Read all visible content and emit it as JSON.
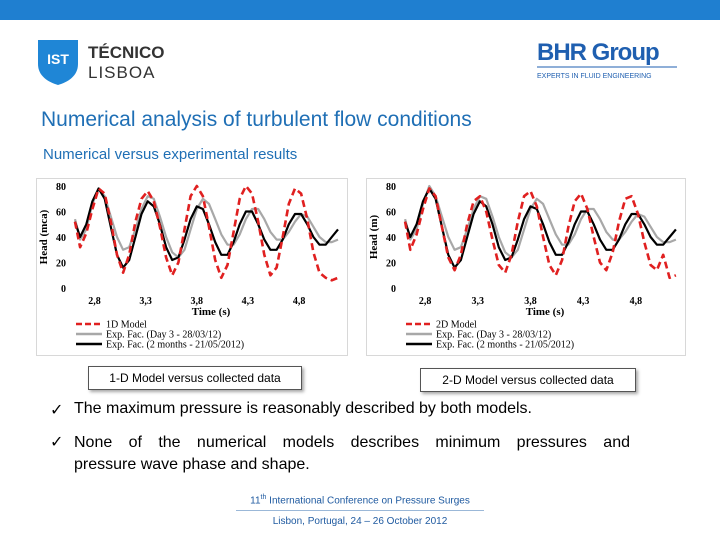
{
  "header": {
    "ist_logo": {
      "line1": "TÉCNICO",
      "line2": "LISBOA",
      "mark": "IST"
    },
    "bhr_logo": {
      "name": "BHR Group",
      "tagline": "EXPERTS IN FLUID ENGINEERING"
    }
  },
  "title": "Numerical analysis of turbulent flow conditions",
  "subtitle": "Numerical versus experimental results",
  "colors": {
    "accent": "#1f7fd0",
    "title": "#1f6fb5",
    "model": "#e02020",
    "exp_day3": "#a8a8a8",
    "exp_2months": "#000000"
  },
  "chart_data": [
    {
      "type": "line",
      "xlabel": "Time (s)",
      "ylabel": "Head (mca)",
      "xlim": [
        2.6,
        5.2
      ],
      "ylim": [
        0,
        80
      ],
      "xticks": [
        "2,8",
        "3,3",
        "3,8",
        "4,3",
        "4,8"
      ],
      "yticks": [
        "0",
        "20",
        "40",
        "60",
        "80"
      ],
      "legend_position": "bottom-left",
      "series": [
        {
          "name": "1D Model",
          "style": "dashed",
          "color": "#e02020",
          "x": [
            2.61,
            2.66,
            2.72,
            2.78,
            2.84,
            2.9,
            2.96,
            3.02,
            3.08,
            3.14,
            3.2,
            3.26,
            3.32,
            3.38,
            3.44,
            3.5,
            3.56,
            3.62,
            3.68,
            3.74,
            3.8,
            3.86,
            3.92,
            3.98,
            4.04,
            4.1,
            4.16,
            4.22,
            4.28,
            4.34,
            4.4,
            4.46,
            4.52,
            4.58,
            4.64,
            4.7,
            4.76,
            4.82,
            4.88,
            4.94,
            5.0,
            5.06,
            5.12,
            5.18
          ],
          "y": [
            52,
            32,
            43,
            62,
            78,
            74,
            52,
            26,
            12,
            26,
            52,
            70,
            76,
            68,
            48,
            24,
            10,
            20,
            46,
            72,
            80,
            72,
            48,
            22,
            8,
            18,
            44,
            70,
            80,
            74,
            52,
            26,
            10,
            16,
            40,
            66,
            78,
            74,
            54,
            28,
            12,
            8,
            6,
            8
          ]
        },
        {
          "name": "Exp. Fac. (Day 3 - 28/03/12)",
          "style": "solid",
          "color": "#a8a8a8",
          "x": [
            2.61,
            2.66,
            2.72,
            2.78,
            2.84,
            2.9,
            2.96,
            3.02,
            3.08,
            3.14,
            3.2,
            3.26,
            3.32,
            3.38,
            3.44,
            3.5,
            3.56,
            3.62,
            3.68,
            3.74,
            3.8,
            3.86,
            3.92,
            3.98,
            4.04,
            4.1,
            4.16,
            4.22,
            4.28,
            4.34,
            4.4,
            4.46,
            4.52,
            4.58,
            4.64,
            4.7,
            4.76,
            4.82,
            4.88,
            4.94,
            5.0,
            5.06,
            5.12,
            5.18
          ],
          "y": [
            54,
            38,
            46,
            66,
            78,
            72,
            56,
            40,
            30,
            32,
            46,
            62,
            72,
            70,
            56,
            40,
            28,
            24,
            30,
            46,
            62,
            70,
            66,
            54,
            42,
            34,
            34,
            42,
            54,
            62,
            62,
            54,
            44,
            38,
            38,
            44,
            52,
            58,
            56,
            48,
            40,
            36,
            36,
            38
          ]
        },
        {
          "name": "Exp. Fac. (2 months - 21/05/2012)",
          "style": "solid",
          "color": "#000000",
          "x": [
            2.61,
            2.66,
            2.72,
            2.78,
            2.84,
            2.9,
            2.96,
            3.02,
            3.08,
            3.14,
            3.2,
            3.26,
            3.32,
            3.38,
            3.44,
            3.5,
            3.56,
            3.62,
            3.68,
            3.74,
            3.8,
            3.86,
            3.92,
            3.98,
            4.04,
            4.1,
            4.16,
            4.22,
            4.28,
            4.34,
            4.4,
            4.46,
            4.52,
            4.58,
            4.64,
            4.7,
            4.76,
            4.82,
            4.88,
            4.94,
            5.0,
            5.06,
            5.12,
            5.18
          ],
          "y": [
            52,
            40,
            50,
            68,
            78,
            70,
            48,
            26,
            16,
            22,
            40,
            58,
            68,
            64,
            50,
            32,
            22,
            24,
            38,
            54,
            64,
            62,
            50,
            36,
            26,
            26,
            36,
            50,
            60,
            60,
            50,
            38,
            30,
            30,
            38,
            50,
            58,
            58,
            50,
            40,
            34,
            34,
            40,
            46
          ]
        }
      ]
    },
    {
      "type": "line",
      "xlabel": "Time (s)",
      "ylabel": "Head (m)",
      "xlim": [
        2.6,
        5.2
      ],
      "ylim": [
        0,
        80
      ],
      "xticks": [
        "2,8",
        "3,3",
        "3,8",
        "4,3",
        "4,8"
      ],
      "yticks": [
        "0",
        "20",
        "40",
        "60",
        "80"
      ],
      "legend_position": "bottom-left",
      "series": [
        {
          "name": "2D Model",
          "style": "dashed",
          "color": "#e02020",
          "x": [
            2.61,
            2.66,
            2.72,
            2.78,
            2.84,
            2.9,
            2.96,
            3.02,
            3.08,
            3.14,
            3.2,
            3.26,
            3.32,
            3.38,
            3.44,
            3.5,
            3.56,
            3.62,
            3.68,
            3.74,
            3.8,
            3.86,
            3.92,
            3.98,
            4.04,
            4.1,
            4.16,
            4.22,
            4.28,
            4.34,
            4.4,
            4.46,
            4.52,
            4.58,
            4.64,
            4.7,
            4.76,
            4.82,
            4.88,
            4.94,
            5.0,
            5.06,
            5.12,
            5.18
          ],
          "y": [
            52,
            30,
            42,
            62,
            78,
            72,
            48,
            24,
            14,
            26,
            50,
            68,
            72,
            60,
            38,
            18,
            12,
            26,
            52,
            72,
            76,
            64,
            40,
            18,
            10,
            22,
            48,
            68,
            74,
            62,
            40,
            20,
            14,
            28,
            52,
            70,
            72,
            58,
            36,
            18,
            14,
            26,
            8,
            10
          ]
        },
        {
          "name": "Exp. Fac. (Day 3 - 28/03/12)",
          "style": "solid",
          "color": "#a8a8a8",
          "x": [
            2.61,
            2.66,
            2.72,
            2.78,
            2.84,
            2.9,
            2.96,
            3.02,
            3.08,
            3.14,
            3.2,
            3.26,
            3.32,
            3.38,
            3.44,
            3.5,
            3.56,
            3.62,
            3.68,
            3.74,
            3.8,
            3.86,
            3.92,
            3.98,
            4.04,
            4.1,
            4.16,
            4.22,
            4.28,
            4.34,
            4.4,
            4.46,
            4.52,
            4.58,
            4.64,
            4.7,
            4.76,
            4.82,
            4.88,
            4.94,
            5.0,
            5.06,
            5.12,
            5.18
          ],
          "y": [
            54,
            38,
            46,
            66,
            80,
            72,
            56,
            40,
            30,
            32,
            46,
            62,
            72,
            70,
            56,
            40,
            28,
            24,
            30,
            46,
            62,
            70,
            66,
            54,
            42,
            34,
            34,
            42,
            54,
            62,
            62,
            54,
            44,
            38,
            38,
            44,
            52,
            58,
            56,
            48,
            40,
            36,
            36,
            38
          ]
        },
        {
          "name": "Exp. Fac. (2 months - 21/05/2012)",
          "style": "solid",
          "color": "#000000",
          "x": [
            2.61,
            2.66,
            2.72,
            2.78,
            2.84,
            2.9,
            2.96,
            3.02,
            3.08,
            3.14,
            3.2,
            3.26,
            3.32,
            3.38,
            3.44,
            3.5,
            3.56,
            3.62,
            3.68,
            3.74,
            3.8,
            3.86,
            3.92,
            3.98,
            4.04,
            4.1,
            4.16,
            4.22,
            4.28,
            4.34,
            4.4,
            4.46,
            4.52,
            4.58,
            4.64,
            4.7,
            4.76,
            4.82,
            4.88,
            4.94,
            5.0,
            5.06,
            5.12,
            5.18
          ],
          "y": [
            52,
            40,
            50,
            68,
            78,
            70,
            48,
            26,
            16,
            22,
            40,
            58,
            68,
            64,
            50,
            32,
            22,
            24,
            38,
            54,
            64,
            62,
            50,
            36,
            26,
            26,
            36,
            50,
            60,
            60,
            50,
            38,
            30,
            30,
            38,
            50,
            58,
            58,
            50,
            40,
            34,
            34,
            40,
            46
          ]
        }
      ]
    }
  ],
  "captions": [
    "1-D Model versus collected data",
    "2-D Model versus collected data"
  ],
  "bullets": [
    {
      "icon": "check-icon",
      "text": "The maximum pressure is reasonably described by both models."
    },
    {
      "icon": "check-icon",
      "line1": "None of the numerical models describes minimum pressures and",
      "line2": "pressure wave phase and shape."
    }
  ],
  "footer": {
    "ordinal": "11",
    "ordinal_suffix": "th",
    "conference": " International Conference on Pressure Surges",
    "place_date": "Lisbon, Portugal, 24 – 26 October 2012"
  }
}
